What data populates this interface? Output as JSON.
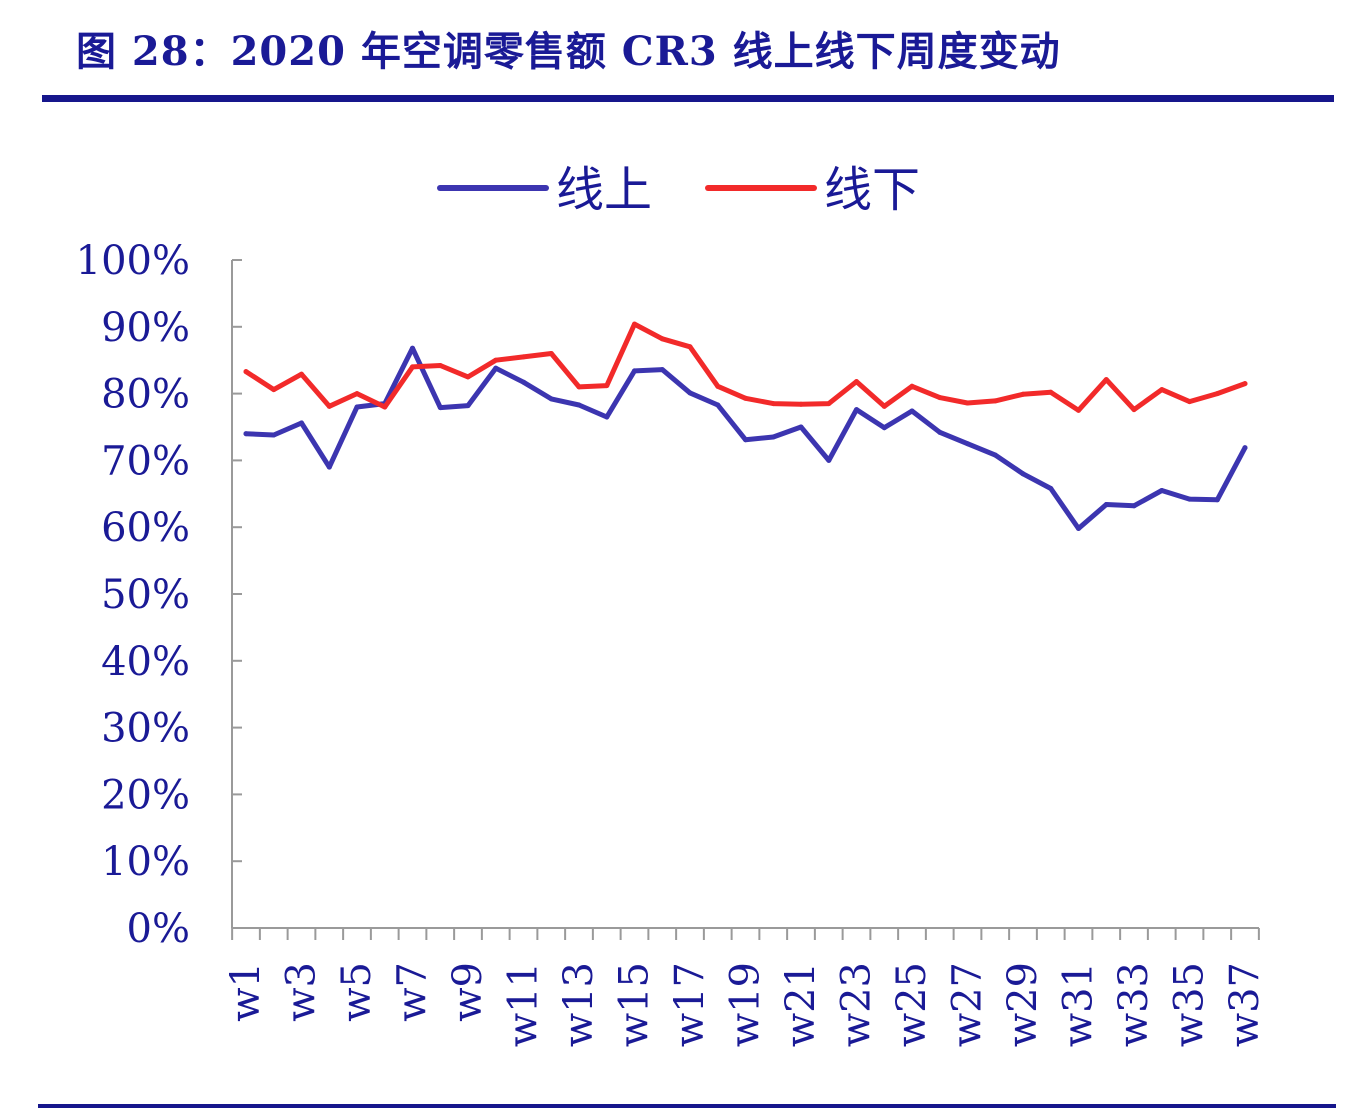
{
  "figure": {
    "title": "图 28：2020 年空调零售额 CR3 线上线下周度变动"
  },
  "colors": {
    "online": "#3c35b0",
    "offline": "#f22a2a",
    "text": "#1a1a96",
    "axis": "#9a9a9a"
  },
  "chart_data": {
    "type": "line",
    "legend_position": "top-center",
    "grid": false,
    "xlabel": "",
    "ylabel": "",
    "ylim": [
      0,
      100
    ],
    "y_ticks": [
      "0%",
      "10%",
      "20%",
      "30%",
      "40%",
      "50%",
      "60%",
      "70%",
      "80%",
      "90%",
      "100%"
    ],
    "categories": [
      "w1",
      "w2",
      "w3",
      "w4",
      "w5",
      "w6",
      "w7",
      "w8",
      "w9",
      "w10",
      "w11",
      "w12",
      "w13",
      "w14",
      "w15",
      "w16",
      "w17",
      "w18",
      "w19",
      "w20",
      "w21",
      "w22",
      "w23",
      "w24",
      "w25",
      "w26",
      "w27",
      "w28",
      "w29",
      "w30",
      "w31",
      "w32",
      "w33",
      "w34",
      "w35",
      "w36",
      "w37"
    ],
    "x_tick_labels": [
      "w1",
      "w3",
      "w5",
      "w7",
      "w9",
      "w11",
      "w13",
      "w15",
      "w17",
      "w19",
      "w21",
      "w23",
      "w25",
      "w27",
      "w29",
      "w31",
      "w33",
      "w35",
      "w37"
    ],
    "series": [
      {
        "name": "线上",
        "color": "#3c35b0",
        "values": [
          74.0,
          73.8,
          75.6,
          69.0,
          78.0,
          78.5,
          86.8,
          77.9,
          78.2,
          83.8,
          81.7,
          79.2,
          78.3,
          76.5,
          83.4,
          83.6,
          80.1,
          78.3,
          73.1,
          73.5,
          75.0,
          70.0,
          77.6,
          74.9,
          77.4,
          74.2,
          72.5,
          70.8,
          68.0,
          65.8,
          59.8,
          63.4,
          63.2,
          65.5,
          64.2,
          64.1,
          71.9
        ]
      },
      {
        "name": "线下",
        "color": "#f22a2a",
        "values": [
          83.3,
          80.6,
          82.9,
          78.1,
          80.0,
          78.0,
          84.0,
          84.2,
          82.5,
          85.0,
          85.5,
          86.0,
          81.0,
          81.2,
          90.4,
          88.2,
          87.0,
          81.1,
          79.3,
          78.5,
          78.4,
          78.5,
          81.8,
          78.1,
          81.1,
          79.4,
          78.6,
          78.9,
          79.9,
          80.2,
          77.5,
          82.1,
          77.6,
          80.6,
          78.8,
          80.0,
          81.5
        ]
      }
    ]
  }
}
